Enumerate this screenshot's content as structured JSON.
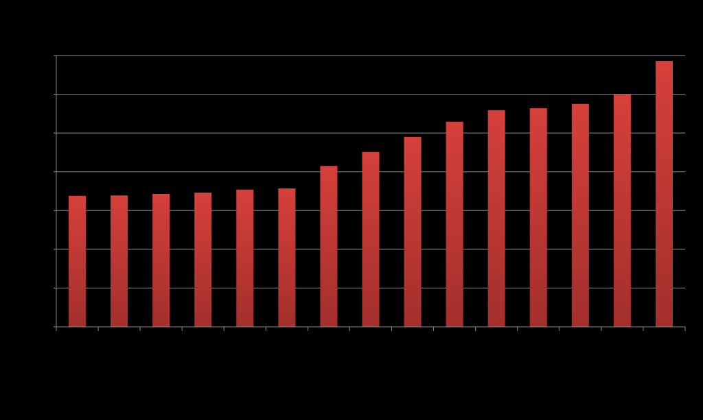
{
  "chart_data": {
    "type": "bar",
    "categories": [
      null,
      null,
      null,
      null,
      null,
      null,
      null,
      null,
      null,
      null,
      null,
      null,
      null,
      null,
      null
    ],
    "values": [
      3.38,
      3.39,
      3.43,
      3.46,
      3.54,
      3.57,
      4.15,
      4.51,
      4.9,
      5.29,
      5.59,
      5.64,
      5.75,
      5.99,
      6.86
    ],
    "color": "#d03e3a",
    "ylim": [
      0,
      7
    ],
    "yticks": [
      0,
      1,
      2,
      3,
      4,
      5,
      6,
      7
    ],
    "grid": true
  }
}
